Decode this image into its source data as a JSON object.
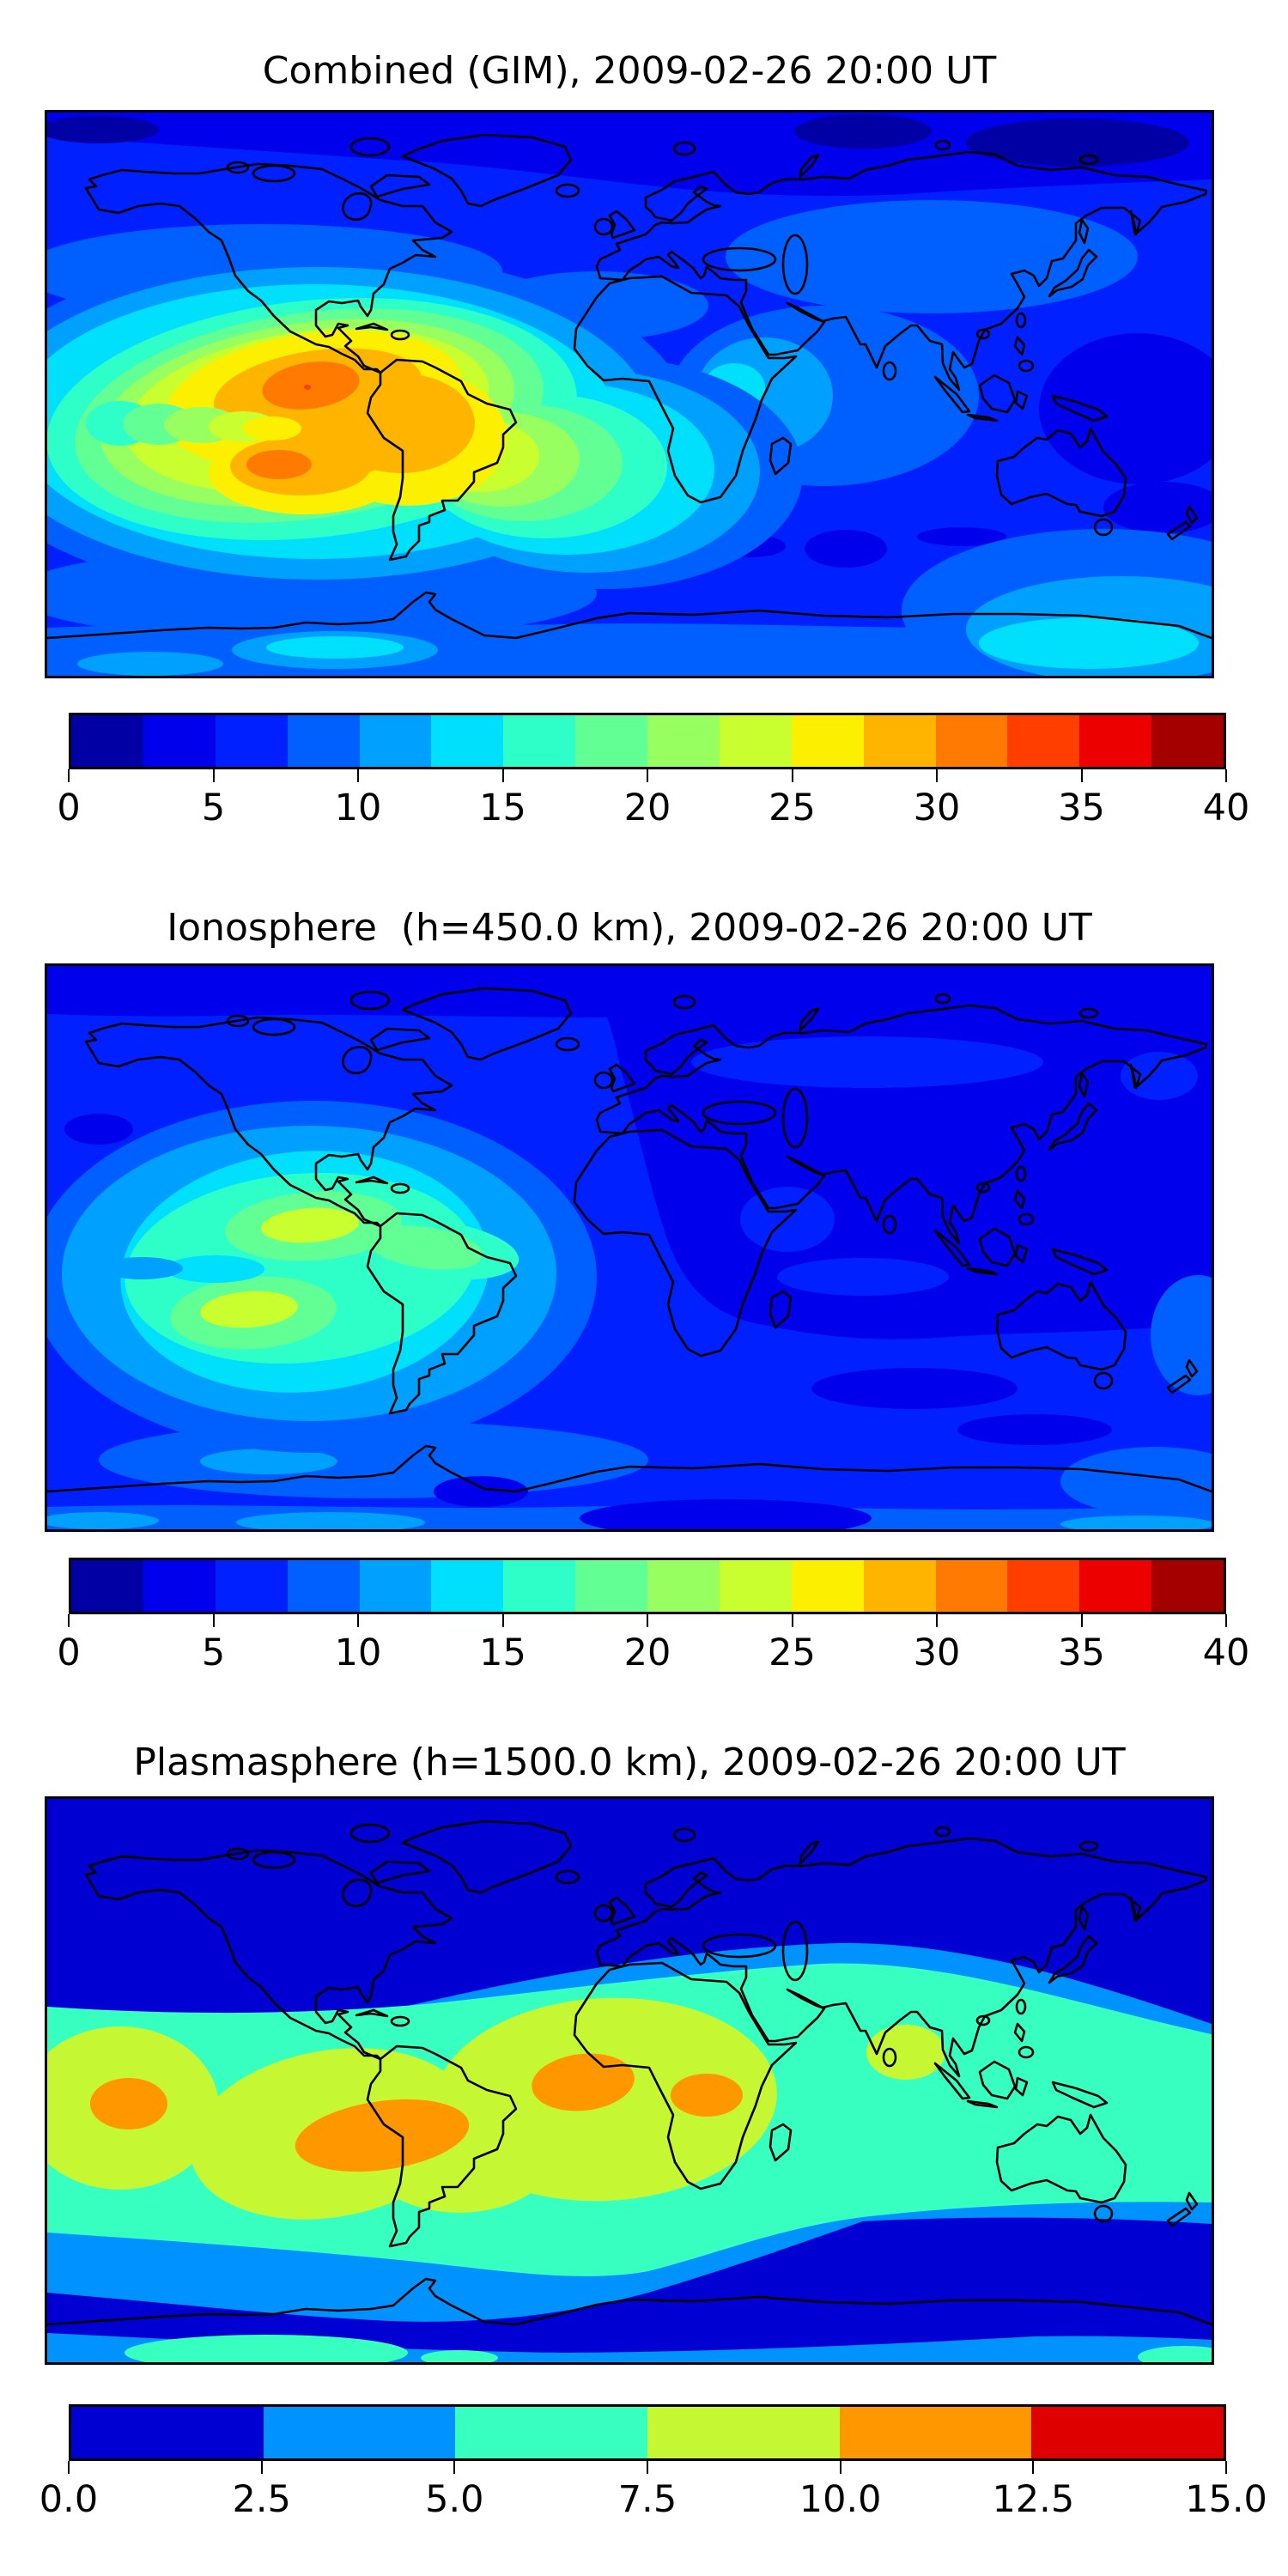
{
  "figure": {
    "panels": [
      {
        "title": "Combined (GIM), 2009-02-26 20:00 UT",
        "colorbar": {
          "min": 0,
          "max": 40,
          "n_segments": 16,
          "ticks": [
            "0",
            "5",
            "10",
            "15",
            "20",
            "25",
            "30",
            "35",
            "40"
          ],
          "colors": [
            "#0000A4",
            "#0000ED",
            "#0020FF",
            "#0060FF",
            "#00A0FF",
            "#00DFFC",
            "#2EFFC9",
            "#62FF95",
            "#97FF60",
            "#C9FF2E",
            "#FCF000",
            "#FFB500",
            "#FF7A00",
            "#FF3E00",
            "#ED0000",
            "#A40000"
          ]
        }
      },
      {
        "title": "Ionosphere  (h=450.0 km), 2009-02-26 20:00 UT",
        "colorbar": {
          "min": 0,
          "max": 40,
          "n_segments": 16,
          "ticks": [
            "0",
            "5",
            "10",
            "15",
            "20",
            "25",
            "30",
            "35",
            "40"
          ],
          "colors": [
            "#0000A4",
            "#0000ED",
            "#0020FF",
            "#0060FF",
            "#00A0FF",
            "#00DFFC",
            "#2EFFC9",
            "#62FF95",
            "#97FF60",
            "#C9FF2E",
            "#FCF000",
            "#FFB500",
            "#FF7A00",
            "#FF3E00",
            "#ED0000",
            "#A40000"
          ]
        }
      },
      {
        "title": "Plasmasphere (h=1500.0 km), 2009-02-26 20:00 UT",
        "colorbar": {
          "min": 0,
          "max": 15,
          "n_segments": 6,
          "ticks": [
            "0.0",
            "2.5",
            "5.0",
            "7.5",
            "10.0",
            "12.5",
            "15.0"
          ],
          "colors": [
            "#0000D2",
            "#0092FF",
            "#36FFC0",
            "#C6F733",
            "#FF9700",
            "#DE0000"
          ]
        }
      }
    ]
  },
  "chart_data": [
    {
      "type": "heatmap",
      "title": "Combined (GIM), 2009-02-26 20:00 UT",
      "projection": "equirectangular world map with coastlines",
      "lon_range": [
        -180,
        180
      ],
      "lat_range": [
        -90,
        90
      ],
      "value_range": [
        0,
        40
      ],
      "contour_interval": 2.5,
      "colormap": "jet (16 discrete levels)",
      "colorbar_ticks": [
        0,
        5,
        10,
        15,
        20,
        25,
        30,
        35,
        40
      ],
      "peaks": [
        {
          "lon": -98,
          "lat": 3,
          "value": 33,
          "note": "main maximum, eastern equatorial Pacific west of Colombia/Ecuador"
        },
        {
          "lon": -108,
          "lat": -22,
          "value": 31,
          "note": "secondary maximum off northern Chile"
        }
      ],
      "high_region": "broad 15-30 enhancement over eastern Pacific and South America",
      "low_regions": [
        {
          "region": "Arctic / northern Siberia",
          "value": "0-5"
        },
        {
          "region": "southern Indian Ocean patches",
          "value": "2.5-5"
        },
        {
          "region": "Philippine Sea patch",
          "value": "2.5-5"
        }
      ],
      "background_value": "5-10 over most oceans"
    },
    {
      "type": "heatmap",
      "title": "Ionosphere  (h=450.0 km), 2009-02-26 20:00 UT",
      "projection": "equirectangular world map with coastlines",
      "lon_range": [
        -180,
        180
      ],
      "lat_range": [
        -90,
        90
      ],
      "value_range": [
        0,
        40
      ],
      "contour_interval": 2.5,
      "colormap": "jet (16 discrete levels)",
      "colorbar_ticks": [
        0,
        5,
        10,
        15,
        20,
        25,
        30,
        35,
        40
      ],
      "peaks": [
        {
          "lon": -99,
          "lat": 7,
          "value": 21,
          "note": "northern crest west of Central America"
        },
        {
          "lon": -118,
          "lat": -20,
          "value": 21,
          "note": "southern crest, south-eastern Pacific"
        }
      ],
      "high_region": "moderate 10-22 enhancement confined to eastern Pacific near South America",
      "low_regions": [
        {
          "region": "Europe, Africa, Asia (night side)",
          "value": "2.5-5"
        },
        {
          "region": "southern Indian Ocean patches",
          "value": "2.5-5"
        }
      ],
      "background_value": "5-7.5 over western oceans"
    },
    {
      "type": "heatmap",
      "title": "Plasmasphere (h=1500.0 km), 2009-02-26 20:00 UT",
      "projection": "equirectangular world map with coastlines",
      "lon_range": [
        -180,
        180
      ],
      "lat_range": [
        -90,
        90
      ],
      "value_range": [
        0,
        15
      ],
      "contour_interval": 2.5,
      "colormap": "jet (6 discrete levels)",
      "colorbar_ticks": [
        0.0,
        2.5,
        5.0,
        7.5,
        10.0,
        12.5,
        15.0
      ],
      "peaks": [
        {
          "lon": -155,
          "lat": -7,
          "value": 11,
          "note": "central Pacific maximum"
        },
        {
          "lon": -76,
          "lat": -18,
          "value": 11.5,
          "note": "strongest maximum over Peru/Brazil"
        },
        {
          "lon": -14,
          "lat": -1,
          "value": 11,
          "note": "maximum over Gulf of Guinea / west Africa"
        },
        {
          "lon": 24,
          "lat": -5,
          "value": 11,
          "note": "maximum over central Africa"
        },
        {
          "lon": 85,
          "lat": 12,
          "value": 8.5,
          "note": "weaker cell over southern India / Bay of Bengal"
        }
      ],
      "high_region": "continuous equatorial belt of 5-12.5 tilted slightly south over the Americas and Africa",
      "low_regions": [
        {
          "region": "high northern latitudes",
          "value": "0-2.5"
        },
        {
          "region": "mid southern latitudes band",
          "value": "0-2.5"
        }
      ],
      "background_value": "0-2.5 polar, 2.5-5 mid-latitude bands"
    }
  ]
}
